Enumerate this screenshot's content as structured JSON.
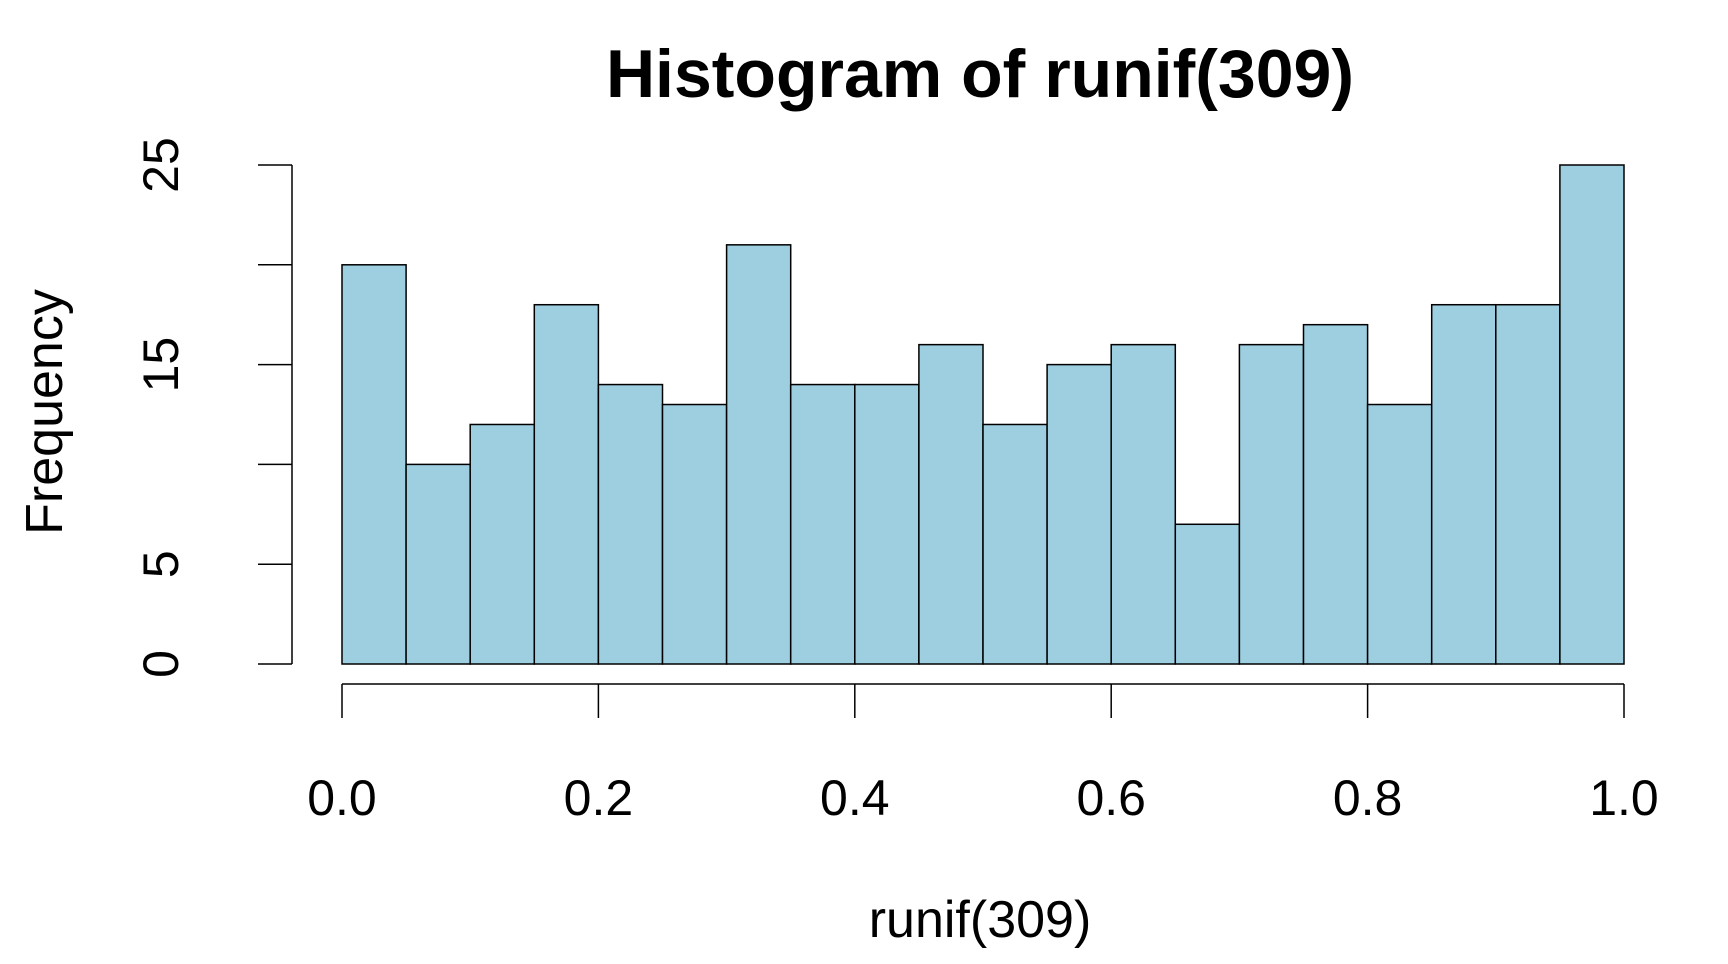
{
  "chart_data": {
    "type": "bar",
    "subtype": "histogram",
    "title": "Histogram of runif(309)",
    "xlabel": "runif(309)",
    "ylabel": "Frequency",
    "bin_width": 0.05,
    "bins": [
      {
        "x0": 0.0,
        "x1": 0.05,
        "count": 20
      },
      {
        "x0": 0.05,
        "x1": 0.1,
        "count": 10
      },
      {
        "x0": 0.1,
        "x1": 0.15,
        "count": 12
      },
      {
        "x0": 0.15,
        "x1": 0.2,
        "count": 18
      },
      {
        "x0": 0.2,
        "x1": 0.25,
        "count": 14
      },
      {
        "x0": 0.25,
        "x1": 0.3,
        "count": 13
      },
      {
        "x0": 0.3,
        "x1": 0.35,
        "count": 21
      },
      {
        "x0": 0.35,
        "x1": 0.4,
        "count": 14
      },
      {
        "x0": 0.4,
        "x1": 0.45,
        "count": 14
      },
      {
        "x0": 0.45,
        "x1": 0.5,
        "count": 16
      },
      {
        "x0": 0.5,
        "x1": 0.55,
        "count": 12
      },
      {
        "x0": 0.55,
        "x1": 0.6,
        "count": 15
      },
      {
        "x0": 0.6,
        "x1": 0.65,
        "count": 16
      },
      {
        "x0": 0.65,
        "x1": 0.7,
        "count": 7
      },
      {
        "x0": 0.7,
        "x1": 0.75,
        "count": 16
      },
      {
        "x0": 0.75,
        "x1": 0.8,
        "count": 17
      },
      {
        "x0": 0.8,
        "x1": 0.85,
        "count": 13
      },
      {
        "x0": 0.85,
        "x1": 0.9,
        "count": 18
      },
      {
        "x0": 0.9,
        "x1": 0.95,
        "count": 18
      },
      {
        "x0": 0.95,
        "x1": 1.0,
        "count": 25
      }
    ],
    "xlim": [
      0,
      1
    ],
    "ylim": [
      0,
      25
    ],
    "x_ticks": [
      {
        "value": 0.0,
        "label": "0.0"
      },
      {
        "value": 0.2,
        "label": "0.2"
      },
      {
        "value": 0.4,
        "label": "0.4"
      },
      {
        "value": 0.6,
        "label": "0.6"
      },
      {
        "value": 0.8,
        "label": "0.8"
      },
      {
        "value": 1.0,
        "label": "1.0"
      }
    ],
    "y_ticks": [
      {
        "value": 0,
        "label": "0"
      },
      {
        "value": 5,
        "label": "5"
      },
      {
        "value": 10,
        "label": ""
      },
      {
        "value": 15,
        "label": "15"
      },
      {
        "value": 20,
        "label": ""
      },
      {
        "value": 25,
        "label": "25"
      }
    ],
    "bar_color": "#9ecfe1",
    "edge_color": "#000000",
    "grid": false,
    "legend": "none"
  }
}
